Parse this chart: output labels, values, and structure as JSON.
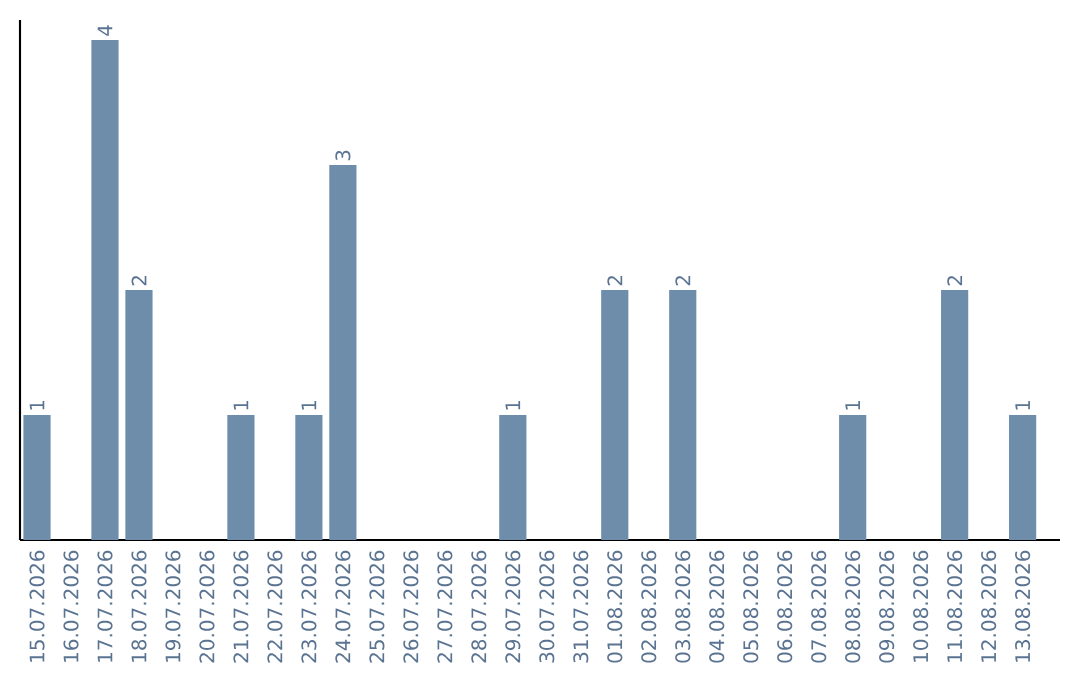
{
  "chart_data": {
    "type": "bar",
    "categories": [
      "15.07.2026",
      "16.07.2026",
      "17.07.2026",
      "18.07.2026",
      "19.07.2026",
      "20.07.2026",
      "21.07.2026",
      "22.07.2026",
      "23.07.2026",
      "24.07.2026",
      "25.07.2026",
      "26.07.2026",
      "27.07.2026",
      "28.07.2026",
      "29.07.2026",
      "30.07.2026",
      "31.07.2026",
      "01.08.2026",
      "02.08.2026",
      "03.08.2026",
      "04.08.2026",
      "05.08.2026",
      "06.08.2026",
      "07.08.2026",
      "08.08.2026",
      "09.08.2026",
      "10.08.2026",
      "11.08.2026",
      "12.08.2026",
      "13.08.2026"
    ],
    "values": [
      1,
      0,
      4,
      2,
      0,
      0,
      1,
      0,
      1,
      3,
      0,
      0,
      0,
      0,
      1,
      0,
      0,
      2,
      0,
      2,
      0,
      0,
      0,
      0,
      1,
      0,
      0,
      2,
      0,
      1
    ],
    "value_labels": [
      "1",
      null,
      "4",
      "2",
      null,
      null,
      "1",
      null,
      "1",
      "3",
      null,
      null,
      null,
      null,
      "1",
      null,
      null,
      "2",
      null,
      "2",
      null,
      null,
      null,
      null,
      "1",
      null,
      null,
      "2",
      null,
      "1"
    ],
    "color": "#6d8dab",
    "ylim": [
      0,
      4.16
    ],
    "tick_labels": "x"
  }
}
